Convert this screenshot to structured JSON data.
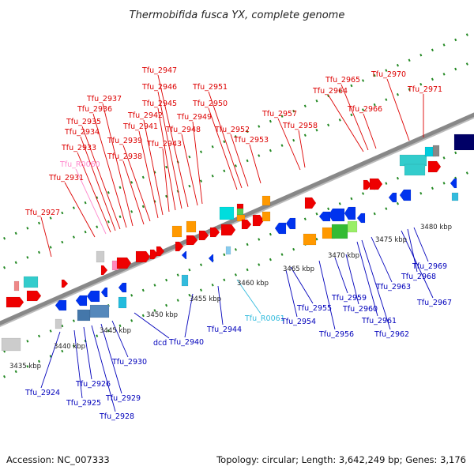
{
  "title": "Thermobifida fusca YX, complete genome",
  "accession": "Accession: NC_007333",
  "summary": "Topology: circular; Length: 3,642,249 bp; Genes: 3,176",
  "colors": {
    "forward_label": "#dd0000",
    "reverse_label": "#0000bb",
    "rna_forward_label": "#ff88cc",
    "rna_reverse_label": "#33bbdd",
    "backbone": "#888888",
    "tick_dots": "#228822"
  },
  "ticks": [
    "3435 kbp",
    "3440 kbp",
    "3445 kbp",
    "3450 kbp",
    "3455 kbp",
    "3460 kbp",
    "3465 kbp",
    "3470 kbp",
    "3475 kbp",
    "3480 kbp"
  ],
  "genes_forward": [
    "Tfu_2927",
    "Tfu_2931",
    "Tfu_R0060",
    "Tfu_2933",
    "Tfu_2934",
    "Tfu_2935",
    "Tfu_2936",
    "Tfu_2937",
    "Tfu_2938",
    "Tfu_2939",
    "Tfu_2941",
    "Tfu_2942",
    "Tfu_2943",
    "Tfu_2945",
    "Tfu_2946",
    "Tfu_2947",
    "Tfu_2948",
    "Tfu_2949",
    "Tfu_2950",
    "Tfu_2951",
    "Tfu_2952",
    "Tfu_2953",
    "Tfu_2957",
    "Tfu_2958",
    "Tfu_2964",
    "Tfu_2965",
    "Tfu_2966",
    "Tfu_2970",
    "Tfu_2971"
  ],
  "genes_reverse": [
    "Tfu_2924",
    "Tfu_2925",
    "Tfu_2926",
    "Tfu_2928",
    "Tfu_2929",
    "Tfu_2930",
    "dcd",
    "Tfu_2940",
    "Tfu_2944",
    "Tfu_R0061",
    "Tfu_2954",
    "Tfu_2955",
    "Tfu_2956",
    "Tfu_2959",
    "Tfu_2960",
    "Tfu_2961",
    "Tfu_2962",
    "Tfu_2963",
    "Tfu_2967",
    "Tfu_2968",
    "Tfu_2969"
  ]
}
